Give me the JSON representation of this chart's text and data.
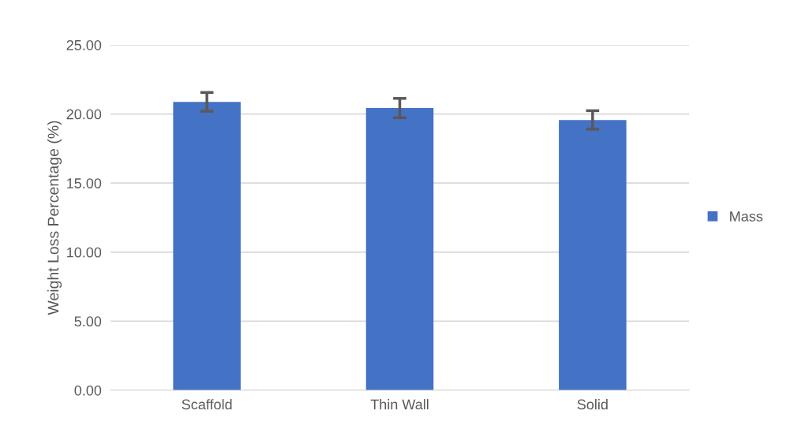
{
  "chart_data": {
    "type": "bar",
    "ylabel": "Weight Loss Percentage (%)",
    "categories": [
      "Scaffold",
      "Thin Wall",
      "Solid"
    ],
    "series": [
      {
        "name": "Mass",
        "color": "#4472c4",
        "values": [
          20.88,
          20.43,
          19.57
        ],
        "errors": [
          0.68,
          0.7,
          0.67
        ]
      }
    ],
    "ylim": [
      0,
      25
    ],
    "yticks": [
      {
        "value": 0,
        "label": "0.00"
      },
      {
        "value": 5,
        "label": "5.00"
      },
      {
        "value": 10,
        "label": "10.00"
      },
      {
        "value": 15,
        "label": "15.00"
      },
      {
        "value": 20,
        "label": "20.00"
      },
      {
        "value": 25,
        "label": "25.00"
      }
    ],
    "grid": "y",
    "legend": "right"
  }
}
